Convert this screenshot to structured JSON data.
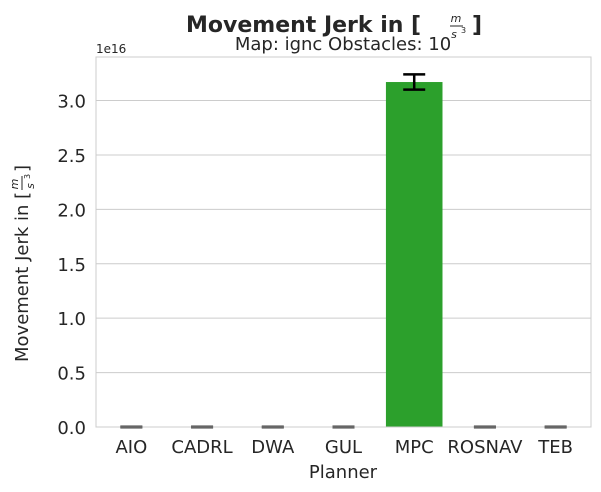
{
  "chart_data": {
    "type": "bar",
    "title": "Movement Jerk in [",
    "title_unit": {
      "numerator": "m",
      "denominator": "s",
      "power": "3",
      "close": "]"
    },
    "subtitle": "Map: ignc Obstacles: 10",
    "xlabel": "Planner",
    "ylabel": "Movement Jerk in [",
    "ylabel_unit": {
      "numerator": "m",
      "denominator": "s",
      "power": "3",
      "close": "]"
    },
    "y_offset_label": "1e16",
    "categories": [
      "AIO",
      "CADRL",
      "DWA",
      "GUL",
      "MPC",
      "ROSNAV",
      "TEB"
    ],
    "values": [
      0.0,
      0.0,
      0.0,
      0.0,
      3.17,
      0.0,
      0.0
    ],
    "errors": [
      {
        "low": 0.0,
        "high": 0.0
      },
      {
        "low": 0.0,
        "high": 0.0
      },
      {
        "low": 0.0,
        "high": 0.0
      },
      {
        "low": 0.0,
        "high": 0.0
      },
      {
        "low": 3.1,
        "high": 3.24
      },
      {
        "low": 0.0,
        "high": 0.0
      },
      {
        "low": 0.0,
        "high": 0.0
      }
    ],
    "colors": [
      "#1f77b4",
      "#ff7f0e",
      "#2ca02c",
      "#d62728",
      "#2ca02c",
      "#8c564b",
      "#e377c2"
    ],
    "ylim": [
      0,
      3.4
    ],
    "yticks": [
      "0.0",
      "0.5",
      "1.0",
      "1.5",
      "2.0",
      "2.5",
      "3.0"
    ],
    "grid": true
  }
}
